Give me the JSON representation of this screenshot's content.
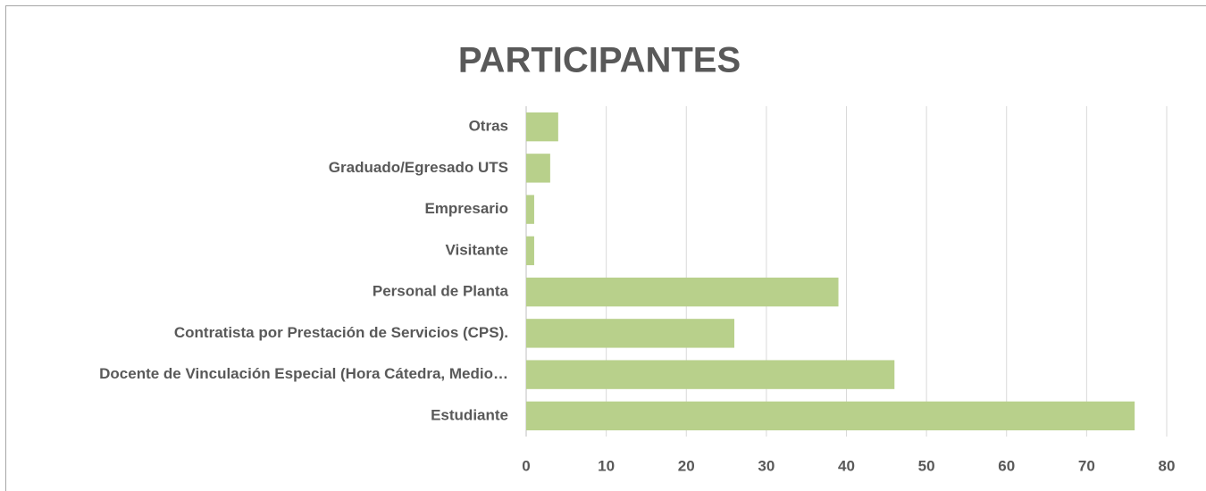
{
  "chart_data": {
    "type": "barh",
    "title": "PARTICIPANTES",
    "categories": [
      "Otras",
      "Graduado/Egresado UTS",
      "Empresario",
      "Visitante",
      "Personal de Planta",
      "Contratista por Prestación de Servicios (CPS).",
      "Docente de Vinculación Especial (Hora Cátedra, Medio…",
      "Estudiante"
    ],
    "values": [
      4,
      3,
      1,
      1,
      39,
      26,
      46,
      76
    ],
    "color": "#b8d08b",
    "xlim": [
      0,
      80
    ],
    "xticks": [
      0,
      10,
      20,
      30,
      40,
      50,
      60,
      70,
      80
    ],
    "grid": true
  }
}
